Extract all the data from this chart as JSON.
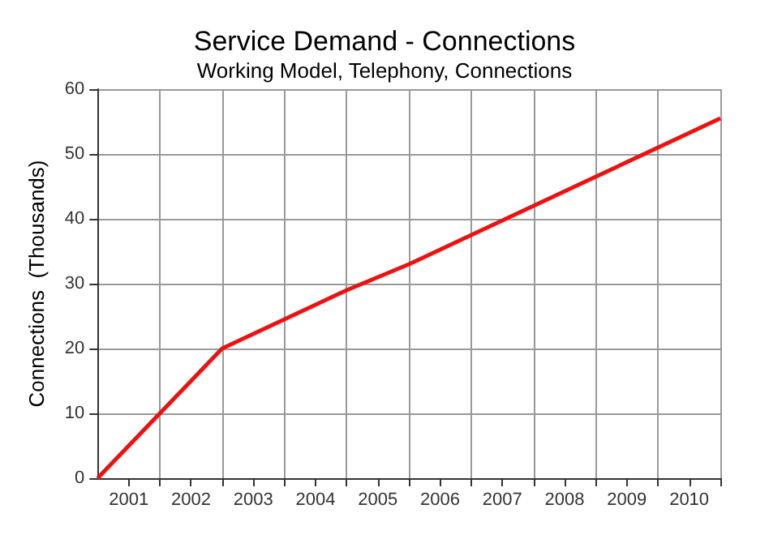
{
  "chart_data": {
    "type": "line",
    "title": "Service Demand - Connections",
    "subtitle": "Working Model, Telephony, Connections",
    "ylabel": "Connections  (Thousands)",
    "x": [
      2001,
      2002,
      2003,
      2004,
      2005,
      2006,
      2007,
      2008,
      2009,
      2010,
      2011
    ],
    "series": [
      {
        "color": "#ee1111",
        "values": [
          0,
          10,
          20,
          24.5,
          29,
          33,
          37.5,
          42,
          46.5,
          51,
          55.5
        ]
      }
    ],
    "xlim": [
      2001,
      2011
    ],
    "xticks": [
      {
        "value": 2001.5,
        "label": "2001"
      },
      {
        "value": 2002,
        "label": null
      },
      {
        "value": 2002.5,
        "label": "2002"
      },
      {
        "value": 2003,
        "label": null
      },
      {
        "value": 2003.5,
        "label": "2003"
      },
      {
        "value": 2004,
        "label": null
      },
      {
        "value": 2004.5,
        "label": "2004"
      },
      {
        "value": 2005,
        "label": null
      },
      {
        "value": 2005.5,
        "label": "2005"
      },
      {
        "value": 2006,
        "label": null
      },
      {
        "value": 2006.5,
        "label": "2006"
      },
      {
        "value": 2007,
        "label": null
      },
      {
        "value": 2007.5,
        "label": "2007"
      },
      {
        "value": 2008,
        "label": null
      },
      {
        "value": 2008.5,
        "label": "2008"
      },
      {
        "value": 2009,
        "label": null
      },
      {
        "value": 2009.5,
        "label": "2009"
      },
      {
        "value": 2010,
        "label": null
      },
      {
        "value": 2010.5,
        "label": "2010"
      },
      {
        "value": 2011,
        "label": null
      }
    ],
    "ylim": [
      0,
      60
    ],
    "yticks": [
      0,
      10,
      20,
      30,
      40,
      50,
      60
    ],
    "grid": true,
    "marker": "none",
    "line_style": "solid"
  }
}
